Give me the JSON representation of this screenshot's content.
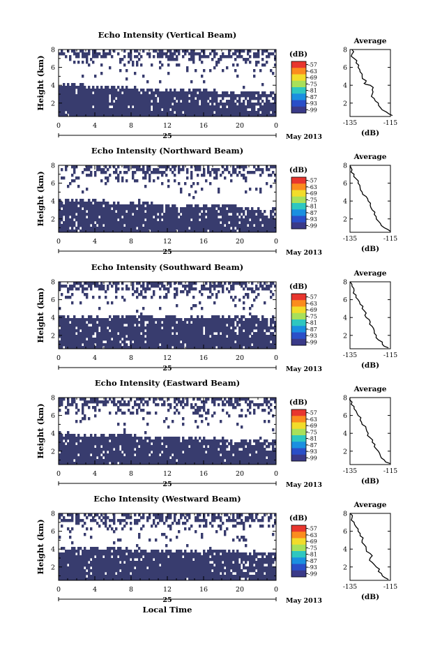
{
  "figure": {
    "month_label": "May 2013",
    "x_title": "Local Time",
    "colorbar_unit": "(dB)",
    "avg_title": "Average",
    "avg_xlabel": "(dB)",
    "date_label": "25"
  },
  "chart_data": [
    {
      "type": "heatmap",
      "title": "Echo Intensity (Vertical Beam)",
      "ylabel": "Height (km)",
      "xlim": [
        0,
        24
      ],
      "ylim": [
        0.5,
        8.0
      ],
      "x_ticks": [
        "0",
        "4",
        "8",
        "12",
        "16",
        "20",
        "0"
      ],
      "y_ticks": [
        2,
        4,
        6,
        8
      ],
      "fill_color": "#383c6e",
      "colorbar": {
        "ticks": [
          "-57",
          "-63",
          "-69",
          "-75",
          "-81",
          "-87",
          "-93",
          "-99"
        ],
        "colors": [
          "#e8362e",
          "#fb8c1e",
          "#f2dc2a",
          "#a8e05a",
          "#2ec7c0",
          "#1a8fe0",
          "#2a4fc8",
          "#3a3a88"
        ]
      },
      "lower_layer": {
        "bottom_km": 0.5,
        "top_km": [
          4.2,
          4.0,
          3.7,
          3.6,
          3.4,
          3.2
        ],
        "at_hours": [
          0,
          5,
          10,
          14,
          19,
          24
        ]
      },
      "upper_patches": "scattered echoes between 5 and 8 km",
      "average_profile": {
        "xlim": [
          -135,
          -115
        ],
        "x_ticks": [
          "-135",
          "-115"
        ],
        "y_ticks": [
          2,
          4,
          6,
          8
        ],
        "heights_km": [
          0.6,
          1.0,
          1.5,
          2.0,
          2.5,
          3.0,
          3.5,
          4.0,
          4.2,
          4.5,
          5.0,
          5.5,
          6.0,
          6.5,
          7.0,
          7.5,
          8.0
        ],
        "db": [
          -114,
          -117,
          -120,
          -121,
          -123,
          -124,
          -124,
          -125,
          -128,
          -127,
          -129,
          -130,
          -131,
          -132,
          -133,
          -134,
          -134
        ]
      }
    },
    {
      "type": "heatmap",
      "title": "Echo Intensity (Northward Beam)",
      "ylabel": "Height (km)",
      "xlim": [
        0,
        24
      ],
      "ylim": [
        0.5,
        8.0
      ],
      "x_ticks": [
        "0",
        "4",
        "8",
        "12",
        "16",
        "20",
        "0"
      ],
      "y_ticks": [
        2,
        4,
        6,
        8
      ],
      "fill_color": "#383c6e",
      "colorbar": {
        "ticks": [
          "-57",
          "-63",
          "-69",
          "-75",
          "-81",
          "-87",
          "-93",
          "-99"
        ],
        "colors": [
          "#e8362e",
          "#fb8c1e",
          "#f2dc2a",
          "#a8e05a",
          "#2ec7c0",
          "#1a8fe0",
          "#2a4fc8",
          "#3a3a88"
        ]
      },
      "lower_layer": {
        "bottom_km": 0.5,
        "top_km": [
          4.3,
          4.1,
          3.8,
          3.7,
          3.5,
          3.2
        ],
        "at_hours": [
          0,
          5,
          10,
          14,
          19,
          24
        ]
      },
      "upper_patches": "scattered echoes between 5 and 8 km",
      "average_profile": {
        "xlim": [
          -135,
          -115
        ],
        "x_ticks": [
          "-135",
          "-115"
        ],
        "y_ticks": [
          2,
          4,
          6,
          8
        ],
        "heights_km": [
          0.6,
          1.0,
          1.5,
          2.0,
          2.5,
          3.0,
          3.5,
          4.0,
          4.5,
          5.0,
          5.5,
          6.0,
          6.5,
          7.0,
          7.5,
          8.0
        ],
        "db": [
          -115,
          -118,
          -120,
          -122,
          -123,
          -124,
          -125,
          -126,
          -127,
          -129,
          -130,
          -131,
          -132,
          -133,
          -134,
          -135
        ]
      }
    },
    {
      "type": "heatmap",
      "title": "Echo Intensity (Southward Beam)",
      "ylabel": "Height (km)",
      "xlim": [
        0,
        24
      ],
      "ylim": [
        0.5,
        8.0
      ],
      "x_ticks": [
        "0",
        "4",
        "8",
        "12",
        "16",
        "20",
        "0"
      ],
      "y_ticks": [
        2,
        4,
        6,
        8
      ],
      "fill_color": "#383c6e",
      "colorbar": {
        "ticks": [
          "-57",
          "-63",
          "-69",
          "-75",
          "-81",
          "-87",
          "-93",
          "-99"
        ],
        "colors": [
          "#e8362e",
          "#fb8c1e",
          "#f2dc2a",
          "#a8e05a",
          "#2ec7c0",
          "#1a8fe0",
          "#2a4fc8",
          "#3a3a88"
        ]
      },
      "lower_layer": {
        "bottom_km": 0.5,
        "top_km": [
          4.4,
          4.3,
          4.2,
          4.2,
          4.2,
          4.3
        ],
        "at_hours": [
          0,
          5,
          10,
          14,
          19,
          24
        ]
      },
      "upper_patches": "scattered echoes between 5 and 8 km",
      "average_profile": {
        "xlim": [
          -135,
          -115
        ],
        "x_ticks": [
          "-135",
          "-115"
        ],
        "y_ticks": [
          2,
          4,
          6,
          8
        ],
        "heights_km": [
          0.6,
          1.0,
          1.5,
          2.0,
          2.5,
          3.0,
          3.5,
          4.0,
          4.5,
          5.0,
          5.5,
          6.0,
          6.5,
          7.0,
          7.5,
          8.0
        ],
        "db": [
          -116,
          -119,
          -121,
          -122,
          -123,
          -124,
          -125,
          -127,
          -127,
          -129,
          -130,
          -131,
          -132,
          -133,
          -134,
          -135
        ]
      }
    },
    {
      "type": "heatmap",
      "title": "Echo Intensity (Eastward Beam)",
      "ylabel": "Height (km)",
      "xlim": [
        0,
        24
      ],
      "ylim": [
        0.5,
        8.0
      ],
      "x_ticks": [
        "0",
        "4",
        "8",
        "12",
        "16",
        "20",
        "0"
      ],
      "y_ticks": [
        2,
        4,
        6,
        8
      ],
      "fill_color": "#383c6e",
      "colorbar": {
        "ticks": [
          "-57",
          "-63",
          "-69",
          "-75",
          "-81",
          "-87",
          "-93",
          "-99"
        ],
        "colors": [
          "#e8362e",
          "#fb8c1e",
          "#f2dc2a",
          "#a8e05a",
          "#2ec7c0",
          "#1a8fe0",
          "#2a4fc8",
          "#3a3a88"
        ]
      },
      "lower_layer": {
        "bottom_km": 0.5,
        "top_km": [
          4.1,
          4.0,
          3.7,
          3.6,
          3.4,
          3.3
        ],
        "at_hours": [
          0,
          5,
          10,
          14,
          19,
          24
        ]
      },
      "upper_patches": "scattered echoes between 5 and 8 km",
      "average_profile": {
        "xlim": [
          -135,
          -115
        ],
        "x_ticks": [
          "-135",
          "-115"
        ],
        "y_ticks": [
          2,
          4,
          6,
          8
        ],
        "heights_km": [
          0.6,
          1.0,
          1.5,
          2.0,
          2.5,
          3.0,
          3.5,
          4.0,
          4.5,
          5.0,
          5.5,
          6.0,
          6.5,
          7.0,
          7.5,
          8.0
        ],
        "db": [
          -115,
          -118,
          -120,
          -121,
          -123,
          -124,
          -125,
          -126,
          -127,
          -129,
          -130,
          -131,
          -132,
          -133,
          -134,
          -135
        ]
      }
    },
    {
      "type": "heatmap",
      "title": "Echo Intensity (Westward Beam)",
      "ylabel": "Height (km)",
      "xlim": [
        0,
        24
      ],
      "ylim": [
        0.5,
        8.0
      ],
      "x_ticks": [
        "0",
        "4",
        "8",
        "12",
        "16",
        "20",
        "0"
      ],
      "y_ticks": [
        2,
        4,
        6,
        8
      ],
      "fill_color": "#383c6e",
      "colorbar": {
        "ticks": [
          "-57",
          "-63",
          "-69",
          "-75",
          "-81",
          "-87",
          "-93",
          "-99"
        ],
        "colors": [
          "#e8362e",
          "#fb8c1e",
          "#f2dc2a",
          "#a8e05a",
          "#2ec7c0",
          "#1a8fe0",
          "#2a4fc8",
          "#3a3a88"
        ]
      },
      "lower_layer": {
        "bottom_km": 0.5,
        "top_km": [
          4.3,
          4.2,
          4.0,
          3.9,
          3.8,
          3.7
        ],
        "at_hours": [
          0,
          5,
          10,
          14,
          19,
          24
        ]
      },
      "upper_patches": "scattered echoes between 5 and 8 km",
      "average_profile": {
        "xlim": [
          -135,
          -115
        ],
        "x_ticks": [
          "-135",
          "-115"
        ],
        "y_ticks": [
          2,
          4,
          6,
          8
        ],
        "heights_km": [
          0.6,
          1.0,
          1.5,
          2.0,
          2.5,
          3.0,
          3.5,
          4.0,
          4.5,
          5.0,
          5.5,
          6.0,
          6.5,
          7.0,
          7.5,
          8.0
        ],
        "db": [
          -116,
          -119,
          -121,
          -122,
          -124,
          -125,
          -125,
          -127,
          -128,
          -129,
          -130,
          -131,
          -132,
          -133,
          -134,
          -135
        ]
      }
    }
  ]
}
